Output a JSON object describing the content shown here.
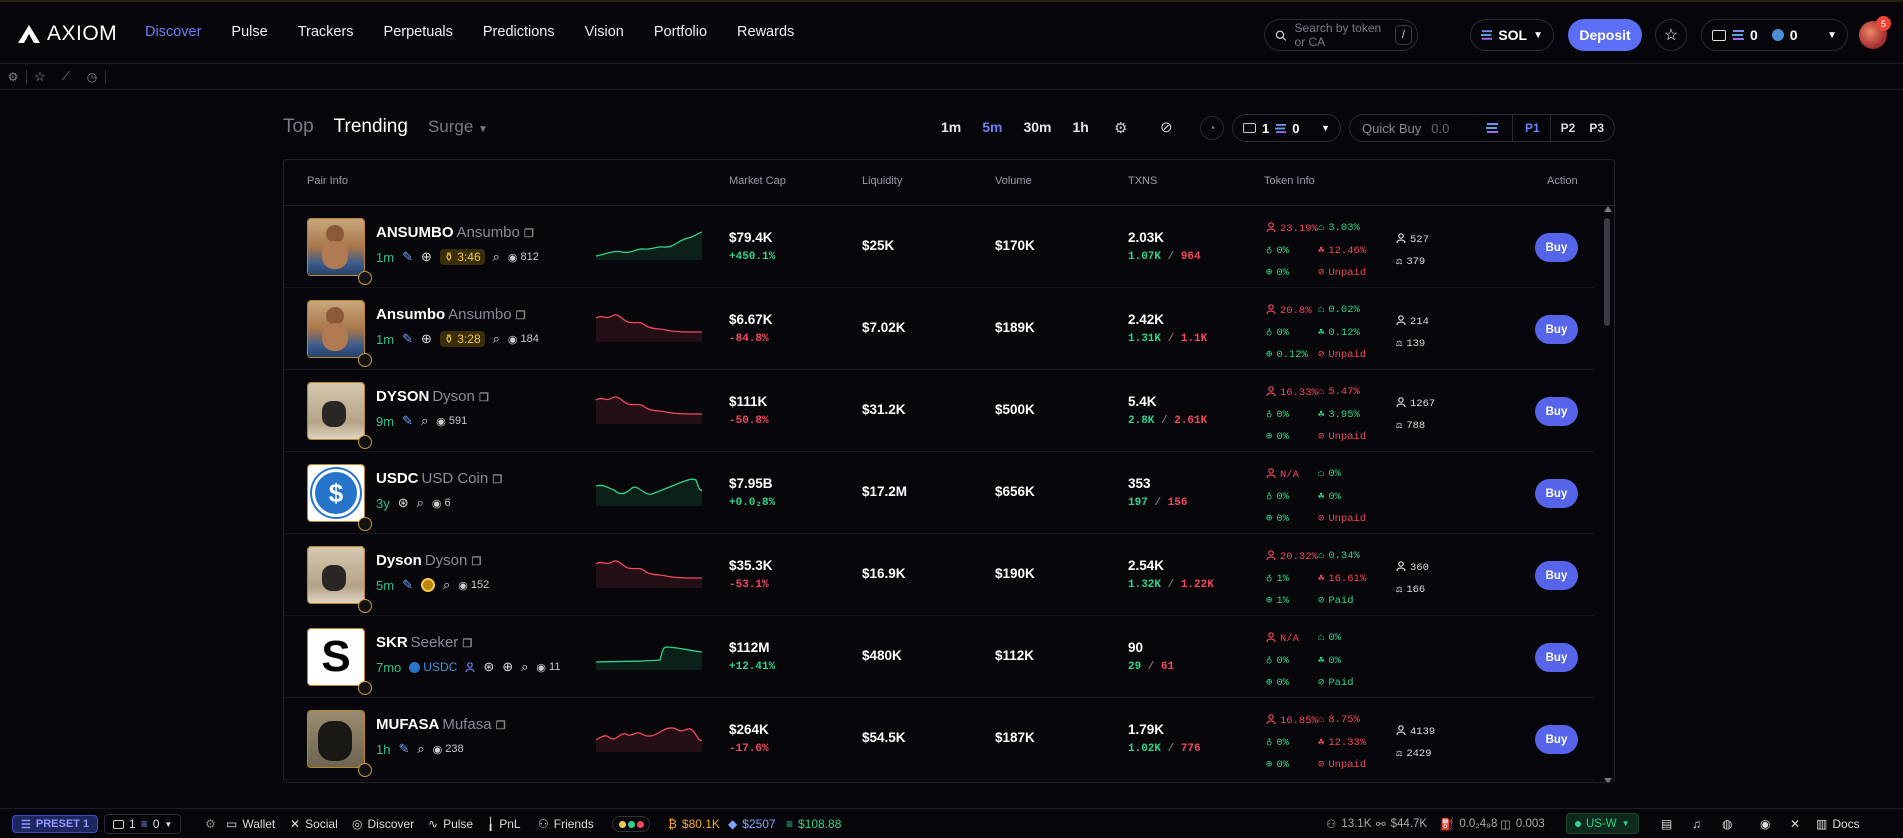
{
  "brand": {
    "name": "AXIOM"
  },
  "nav": [
    "Discover",
    "Pulse",
    "Trackers",
    "Perpetuals",
    "Predictions",
    "Vision",
    "Portfolio",
    "Rewards"
  ],
  "search": {
    "placeholder": "Search by token or CA",
    "shortcut": "/"
  },
  "chain": "SOL",
  "deposit_label": "Deposit",
  "wallet": {
    "sol": "0",
    "other": "0"
  },
  "avatar_badge": "5",
  "tabs": {
    "top": "Top",
    "trending": "Trending",
    "surge": "Surge"
  },
  "timeframes": [
    "1m",
    "5m",
    "30m",
    "1h"
  ],
  "active_timeframe": "5m",
  "wallet_select": {
    "count": "1",
    "sol": "0"
  },
  "quick_buy": {
    "label": "Quick Buy",
    "placeholder": "0.0"
  },
  "presets": [
    "P1",
    "P2",
    "P3"
  ],
  "columns": {
    "pair": "Pair Info",
    "mc": "Market Cap",
    "liq": "Liquidity",
    "vol": "Volume",
    "txns": "TXNS",
    "token": "Token Info",
    "action": "Action"
  },
  "buy_label": "Buy",
  "rows": [
    {
      "symbol": "ANSUMBO",
      "name": "Ansumbo",
      "age": "1m",
      "timer": "3:46",
      "views": "812",
      "trend": "up",
      "mc": "$79.4K",
      "change": "+450.1%",
      "dir": "up",
      "liq": "$25K",
      "vol": "$170K",
      "txns": "2.03K",
      "buys": "1.07K",
      "sells": "964",
      "top10": "23.19%",
      "dev": "3.03%",
      "snipers": "0%",
      "insiders": "12.46%",
      "bundlers": "0%",
      "dex": "Unpaid",
      "holders": "527",
      "pro": "379",
      "thumb": "person"
    },
    {
      "symbol": "Ansumbo",
      "name": "Ansumbo",
      "age": "1m",
      "timer": "3:28",
      "views": "184",
      "trend": "down",
      "mc": "$6.67K",
      "change": "-84.8%",
      "dir": "down",
      "liq": "$7.02K",
      "vol": "$189K",
      "txns": "2.42K",
      "buys": "1.31K",
      "sells": "1.1K",
      "top10": "20.8%",
      "dev": "0.02%",
      "snipers": "0%",
      "insiders": "0.12%",
      "bundlers": "0.12%",
      "dex": "Unpaid",
      "holders": "214",
      "pro": "139",
      "thumb": "person"
    },
    {
      "symbol": "DYSON",
      "name": "Dyson",
      "age": "9m",
      "timer": "",
      "views": "591",
      "trend": "down",
      "mc": "$111K",
      "change": "-50.8%",
      "dir": "down",
      "liq": "$31.2K",
      "vol": "$500K",
      "txns": "5.4K",
      "buys": "2.8K",
      "sells": "2.61K",
      "top10": "16.33%",
      "dev": "5.47%",
      "snipers": "0%",
      "insiders": "3.95%",
      "bundlers": "0%",
      "dex": "Unpaid",
      "holders": "1267",
      "pro": "788",
      "thumb": "cat"
    },
    {
      "symbol": "USDC",
      "name": "USD Coin",
      "age": "3y",
      "timer": "",
      "views": "6",
      "trend": "flat",
      "mc": "$7.95B",
      "change": "+0.0₂8%",
      "dir": "up",
      "liq": "$17.2M",
      "vol": "$656K",
      "txns": "353",
      "buys": "197",
      "sells": "156",
      "top10": "N/A",
      "dev": "0%",
      "snipers": "0%",
      "insiders": "0%",
      "bundlers": "0%",
      "dex": "Unpaid",
      "holders": "",
      "pro": "",
      "thumb": "usdc"
    },
    {
      "symbol": "Dyson",
      "name": "Dyson",
      "age": "5m",
      "timer": "",
      "views": "152",
      "trend": "down",
      "mc": "$35.3K",
      "change": "-53.1%",
      "dir": "down",
      "liq": "$16.9K",
      "vol": "$190K",
      "txns": "2.54K",
      "buys": "1.32K",
      "sells": "1.22K",
      "top10": "20.32%",
      "dev": "0.34%",
      "snipers": "1%",
      "insiders": "16.61%",
      "bundlers": "1%",
      "dex": "Paid",
      "holders": "360",
      "pro": "166",
      "thumb": "cat"
    },
    {
      "symbol": "SKR",
      "name": "Seeker",
      "age": "7mo",
      "timer": "",
      "views": "11",
      "trend": "step",
      "mc": "$112M",
      "change": "+12.41%",
      "dir": "up",
      "liq": "$480K",
      "vol": "$112K",
      "txns": "90",
      "buys": "29",
      "sells": "61",
      "top10": "N/A",
      "dev": "0%",
      "snipers": "0%",
      "insiders": "0%",
      "bundlers": "0%",
      "dex": "Paid",
      "holders": "",
      "pro": "",
      "thumb": "skr",
      "quote": "USDC"
    },
    {
      "symbol": "MUFASA",
      "name": "Mufasa",
      "age": "1h",
      "timer": "",
      "views": "238",
      "trend": "down2",
      "mc": "$264K",
      "change": "-17.6%",
      "dir": "down",
      "liq": "$54.5K",
      "vol": "$187K",
      "txns": "1.79K",
      "buys": "1.02K",
      "sells": "776",
      "top10": "16.85%",
      "dev": "8.75%",
      "snipers": "0%",
      "insiders": "12.33%",
      "bundlers": "0%",
      "dex": "Unpaid",
      "holders": "4139",
      "pro": "2429",
      "thumb": "cat2"
    }
  ],
  "footer": {
    "preset": "PRESET 1",
    "wallets": "1",
    "sol": "0",
    "links": [
      "Wallet",
      "Social",
      "Discover",
      "Pulse",
      "PnL",
      "Friends"
    ],
    "btc": "$80.1K",
    "eth": "$2507",
    "sol_price": "$108.88",
    "users": "13.1K",
    "fees": "$44.7K",
    "gas": "0.0₂4₈8",
    "priority": "0.003",
    "region": "US-W",
    "docs": "Docs"
  },
  "colors": {
    "accent": "#5b6ef5",
    "green": "#2fd38a",
    "red": "#f2485f",
    "gold": "#c89a3a"
  }
}
